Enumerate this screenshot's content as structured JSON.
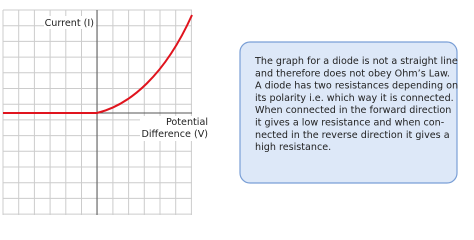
{
  "graph": {
    "y_label": "Current (I)",
    "x_label": [
      "Potential",
      "Difference (V)"
    ]
  },
  "note": {
    "lines": [
      "The graph for a diode is not a straight line",
      "and therefore does not obey Ohm’s Law.",
      "A diode has two resistances depending on",
      "its polarity i.e. which way it is connected.",
      "When connected in the forward direction",
      "it gives a low resistance and when con-",
      "nected in the reverse direction it gives a",
      "high resistance."
    ]
  }
}
